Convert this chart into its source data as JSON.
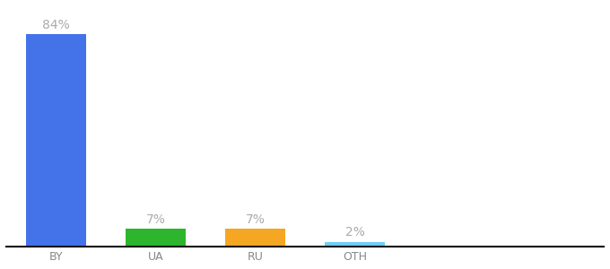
{
  "categories": [
    "BY",
    "UA",
    "RU",
    "OTH"
  ],
  "values": [
    84,
    7,
    7,
    2
  ],
  "labels": [
    "84%",
    "7%",
    "7%",
    "2%"
  ],
  "bar_colors": [
    "#4472e8",
    "#2db52d",
    "#f5a623",
    "#6ecff6"
  ],
  "background_color": "#ffffff",
  "label_color": "#aaaaaa",
  "label_fontsize": 10,
  "tick_fontsize": 9,
  "tick_color": "#888888",
  "ylim": [
    0,
    95
  ],
  "bar_width": 0.6
}
